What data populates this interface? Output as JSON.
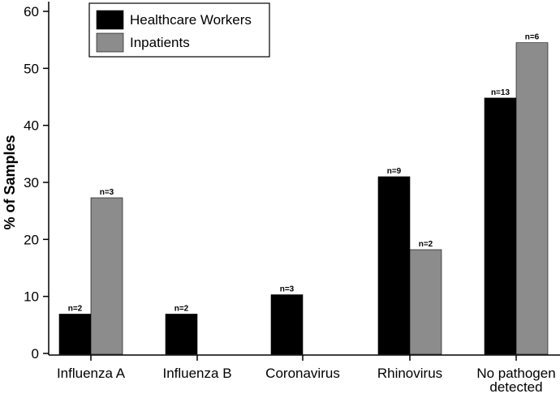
{
  "chart_data": {
    "type": "bar",
    "title": "",
    "xlabel": "",
    "ylabel": "% of Samples",
    "ylim": [
      0,
      60
    ],
    "yticks": [
      0,
      10,
      20,
      30,
      40,
      50,
      60
    ],
    "grid": false,
    "legend_position": "top-left",
    "categories": [
      [
        "Influenza A"
      ],
      [
        "Influenza B"
      ],
      [
        "Coronavirus"
      ],
      [
        "Rhinovirus"
      ],
      [
        "No pathogen",
        "detected"
      ]
    ],
    "series": [
      {
        "name": "Healthcare Workers",
        "color": "#000000",
        "values": [
          6.9,
          6.9,
          10.3,
          31.0,
          44.8
        ],
        "labels": [
          "n=2",
          "n=2",
          "n=3",
          "n=9",
          "n=13"
        ]
      },
      {
        "name": "Inpatients",
        "color": "#8c8c8c",
        "values": [
          27.3,
          null,
          null,
          18.2,
          54.5
        ],
        "labels": [
          "n=3",
          null,
          null,
          "n=2",
          "n=6"
        ]
      }
    ]
  }
}
